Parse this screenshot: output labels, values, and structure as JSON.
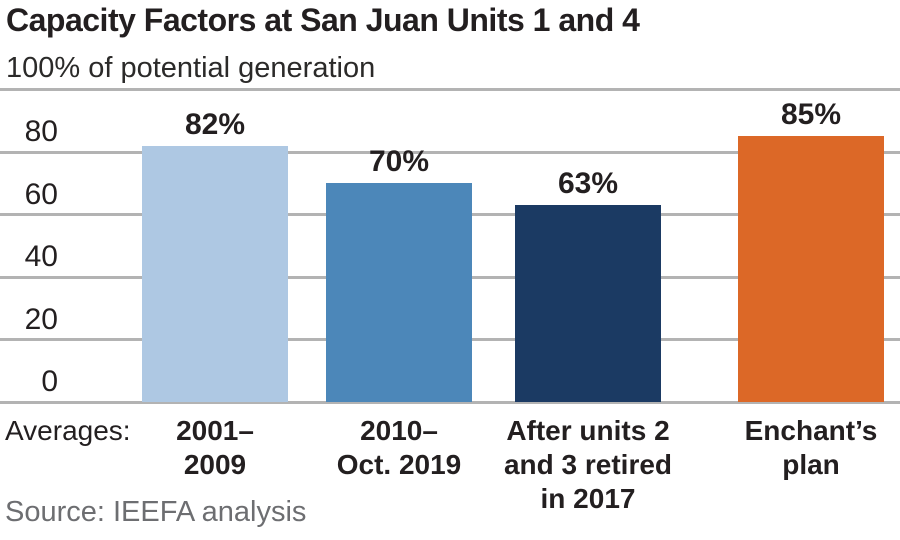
{
  "chart_data": {
    "type": "bar",
    "title": "Capacity Factors at San Juan Units 1 and 4",
    "subtitle": "100% of potential generation",
    "x_prefix": "Averages:",
    "categories": [
      "2001–\n2009",
      "2010–\nOct. 2019",
      "After units 2\nand 3 retired\nin 2017",
      "Enchant’s\nplan"
    ],
    "values": [
      82,
      70,
      63,
      85
    ],
    "value_labels": [
      "82%",
      "70%",
      "63%",
      "85%"
    ],
    "bar_colors": [
      "#aec8e3",
      "#4c87b9",
      "#1b3a63",
      "#dc6827"
    ],
    "ylim": [
      0,
      100
    ],
    "yticks": [
      0,
      20,
      40,
      60,
      80
    ],
    "grid": true,
    "legend": "none",
    "source": "Source: IEEFA analysis",
    "colors": {
      "text": "#231f20",
      "source_text": "#6d6e71",
      "gridline": "#b3b3b3"
    }
  }
}
